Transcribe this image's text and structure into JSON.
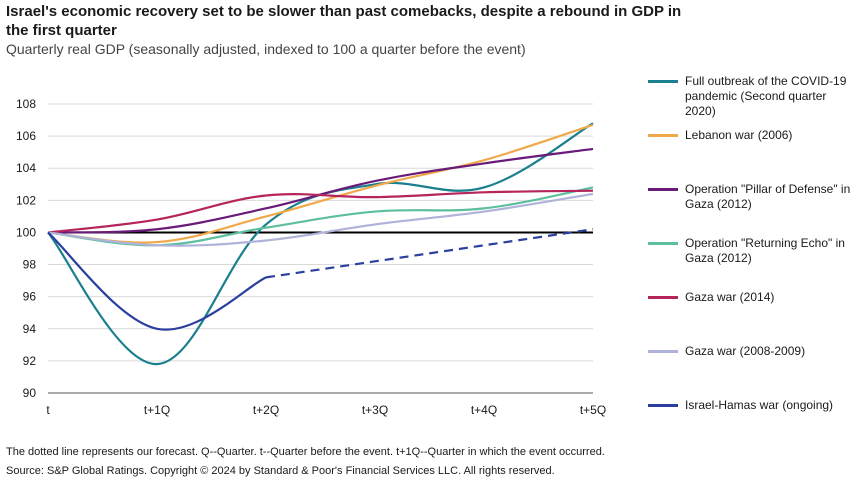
{
  "title": "Israel's economic recovery set to be slower than past comebacks, despite a rebound in GDP in the first quarter",
  "subtitle": "Quarterly real GDP (seasonally adjusted, indexed to 100 a quarter before the event)",
  "footnote": "The dotted line represents our forecast. Q--Quarter. t--Quarter before the event. t+1Q--Quarter in which the event occurred.",
  "source": "Source: S&P Global Ratings. Copyright © 2024 by Standard & Poor's Financial Services LLC. All rights reserved.",
  "chart_data": {
    "type": "line",
    "categories": [
      "t",
      "t+1Q",
      "t+2Q",
      "t+3Q",
      "t+4Q",
      "t+5Q"
    ],
    "x": [
      0,
      1,
      2,
      3,
      4,
      5
    ],
    "ylim": [
      90,
      108
    ],
    "yticks": [
      90,
      92,
      94,
      96,
      98,
      100,
      102,
      104,
      106,
      108
    ],
    "grid": "horizontal",
    "legend": "right",
    "reference_line": 100,
    "series": [
      {
        "name": "Full outbreak of the COVID-19 pandemic (Second quarter 2020)",
        "color": "#1a7f8e",
        "values": [
          100,
          91.8,
          100.5,
          103.0,
          102.8,
          106.8
        ],
        "style": "solid"
      },
      {
        "name": "Lebanon war (2006)",
        "color": "#f0a94a",
        "values": [
          100,
          99.4,
          101.0,
          102.9,
          104.5,
          106.7
        ],
        "style": "solid"
      },
      {
        "name": "Operation \"Pillar of Defense\" in Gaza (2012)",
        "color": "#6a1b7a",
        "values": [
          100,
          100.2,
          101.5,
          103.2,
          104.3,
          105.2
        ],
        "style": "solid"
      },
      {
        "name": "Operation \"Returning Echo\" in Gaza (2012)",
        "color": "#5dbf9e",
        "values": [
          100,
          99.2,
          100.3,
          101.3,
          101.5,
          102.8
        ],
        "style": "solid"
      },
      {
        "name": "Gaza war (2014)",
        "color": "#b5245a",
        "values": [
          100,
          100.8,
          102.3,
          102.2,
          102.5,
          102.6
        ],
        "style": "solid"
      },
      {
        "name": "Gaza war (2008-2009)",
        "color": "#b0b3d9",
        "values": [
          100,
          99.2,
          99.5,
          100.5,
          101.3,
          102.4
        ],
        "style": "solid"
      },
      {
        "name": "Israel-Hamas war (ongoing)",
        "color": "#2a3f9e",
        "values": [
          100,
          94.0,
          97.2,
          null,
          null,
          null
        ],
        "style": "solid"
      },
      {
        "name": "",
        "color": "#2a3f9e",
        "values": [
          null,
          null,
          97.2,
          98.2,
          99.2,
          100.2
        ],
        "style": "dashed"
      }
    ],
    "legend_entries": [
      {
        "label": "Full outbreak of the COVID-19 pandemic (Second quarter 2020)",
        "color": "#1a7f8e"
      },
      {
        "label": "Lebanon war (2006)",
        "color": "#f0a94a"
      },
      {
        "label": "Operation \"Pillar of Defense\" in Gaza (2012)",
        "color": "#6a1b7a"
      },
      {
        "label": "Operation \"Returning Echo\" in Gaza (2012)",
        "color": "#5dbf9e"
      },
      {
        "label": "Gaza war (2014)",
        "color": "#b5245a"
      },
      {
        "label": "Gaza war (2008-2009)",
        "color": "#b0b3d9"
      },
      {
        "label": "Israel-Hamas war (ongoing)",
        "color": "#2a3f9e"
      }
    ]
  }
}
